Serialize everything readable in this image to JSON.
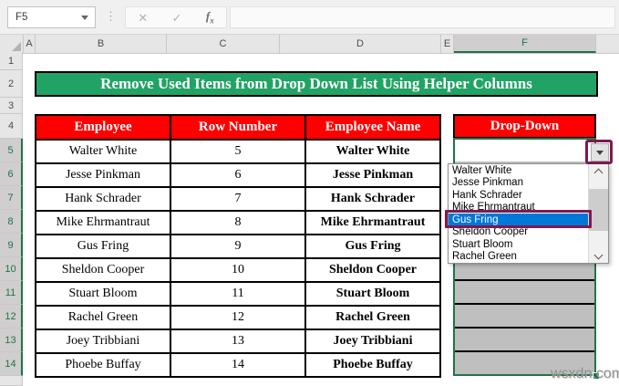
{
  "toolbar": {
    "name_box_value": "F5",
    "cancel_label": "✕",
    "enter_label": "✓",
    "function_label": "fx",
    "formula_value": ""
  },
  "sheet": {
    "column_headers": [
      "A",
      "B",
      "C",
      "D",
      "E",
      "F"
    ],
    "selected_column": "F",
    "row_headers": [
      "1",
      "2",
      "3",
      "4",
      "5",
      "6",
      "7",
      "8",
      "9",
      "10",
      "11",
      "12",
      "13",
      "14"
    ],
    "selected_rows": [
      "5",
      "6",
      "7",
      "8",
      "9",
      "10",
      "11",
      "12",
      "13",
      "14"
    ]
  },
  "banner": {
    "text": "Remove Used Items from Drop Down List Using Helper Columns"
  },
  "table": {
    "headers": [
      "Employee",
      "Row Number",
      "Employee Name"
    ],
    "rows": [
      [
        "Walter White",
        "5",
        "Walter White"
      ],
      [
        "Jesse Pinkman",
        "6",
        "Jesse Pinkman"
      ],
      [
        "Hank Schrader",
        "7",
        "Hank Schrader"
      ],
      [
        "Mike Ehrmantraut",
        "8",
        "Mike Ehrmantraut"
      ],
      [
        "Gus Fring",
        "9",
        "Gus Fring"
      ],
      [
        "Sheldon Cooper",
        "10",
        "Sheldon Cooper"
      ],
      [
        "Stuart Bloom",
        "11",
        "Stuart Bloom"
      ],
      [
        "Rachel Green",
        "12",
        "Rachel Green"
      ],
      [
        "Joey Tribbiani",
        "13",
        "Joey Tribbiani"
      ],
      [
        "Phoebe Buffay",
        "14",
        "Phoebe Buffay"
      ]
    ]
  },
  "dropdown": {
    "header": "Drop-Down",
    "cell_value": "",
    "items": [
      "Walter White",
      "Jesse Pinkman",
      "Hank Schrader",
      "Mike Ehrmantraut",
      "Gus Fring",
      "Sheldon Cooper",
      "Stuart Bloom",
      "Rachel Green"
    ],
    "highlighted_item": "Gus Fring"
  },
  "watermark": "wsxdn.com",
  "colors": {
    "banner_green": "#21A366",
    "header_red": "#FF0000",
    "selection_green": "#217346",
    "highlight_blue": "#0078D7",
    "annotation_magenta": "#7E1A4E",
    "used_cell_gray": "#BFBFBF"
  }
}
